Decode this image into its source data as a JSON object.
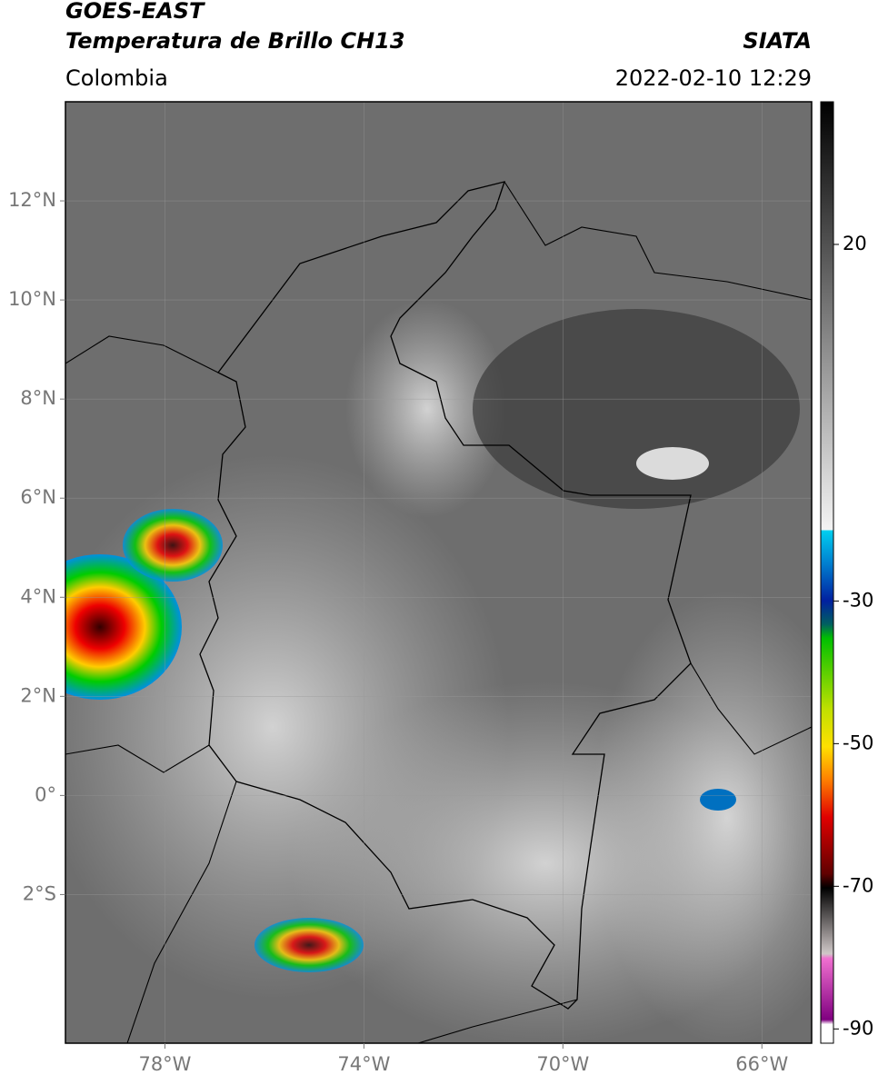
{
  "header": {
    "title": "GOES-EAST",
    "subtitle": "Temperatura de Brillo CH13",
    "source": "SIATA",
    "region": "Colombia",
    "timestamp": "2022-02-10 12:29"
  },
  "map": {
    "xlim": [
      -80,
      -65
    ],
    "ylim": [
      -5,
      14
    ],
    "xticks": [
      {
        "value": -78,
        "label": "78°W"
      },
      {
        "value": -74,
        "label": "74°W"
      },
      {
        "value": -70,
        "label": "70°W"
      },
      {
        "value": -66,
        "label": "66°W"
      }
    ],
    "yticks": [
      {
        "value": 12,
        "label": "12°N"
      },
      {
        "value": 10,
        "label": "10°N"
      },
      {
        "value": 8,
        "label": "8°N"
      },
      {
        "value": 6,
        "label": "6°N"
      },
      {
        "value": 4,
        "label": "4°N"
      },
      {
        "value": 2,
        "label": "2°N"
      },
      {
        "value": 0,
        "label": "0°"
      },
      {
        "value": -2,
        "label": "2°S"
      }
    ],
    "grid": true
  },
  "colorbar": {
    "lim": [
      -92,
      40
    ],
    "ticks": [
      20,
      -30,
      -50,
      -70,
      -90
    ]
  }
}
